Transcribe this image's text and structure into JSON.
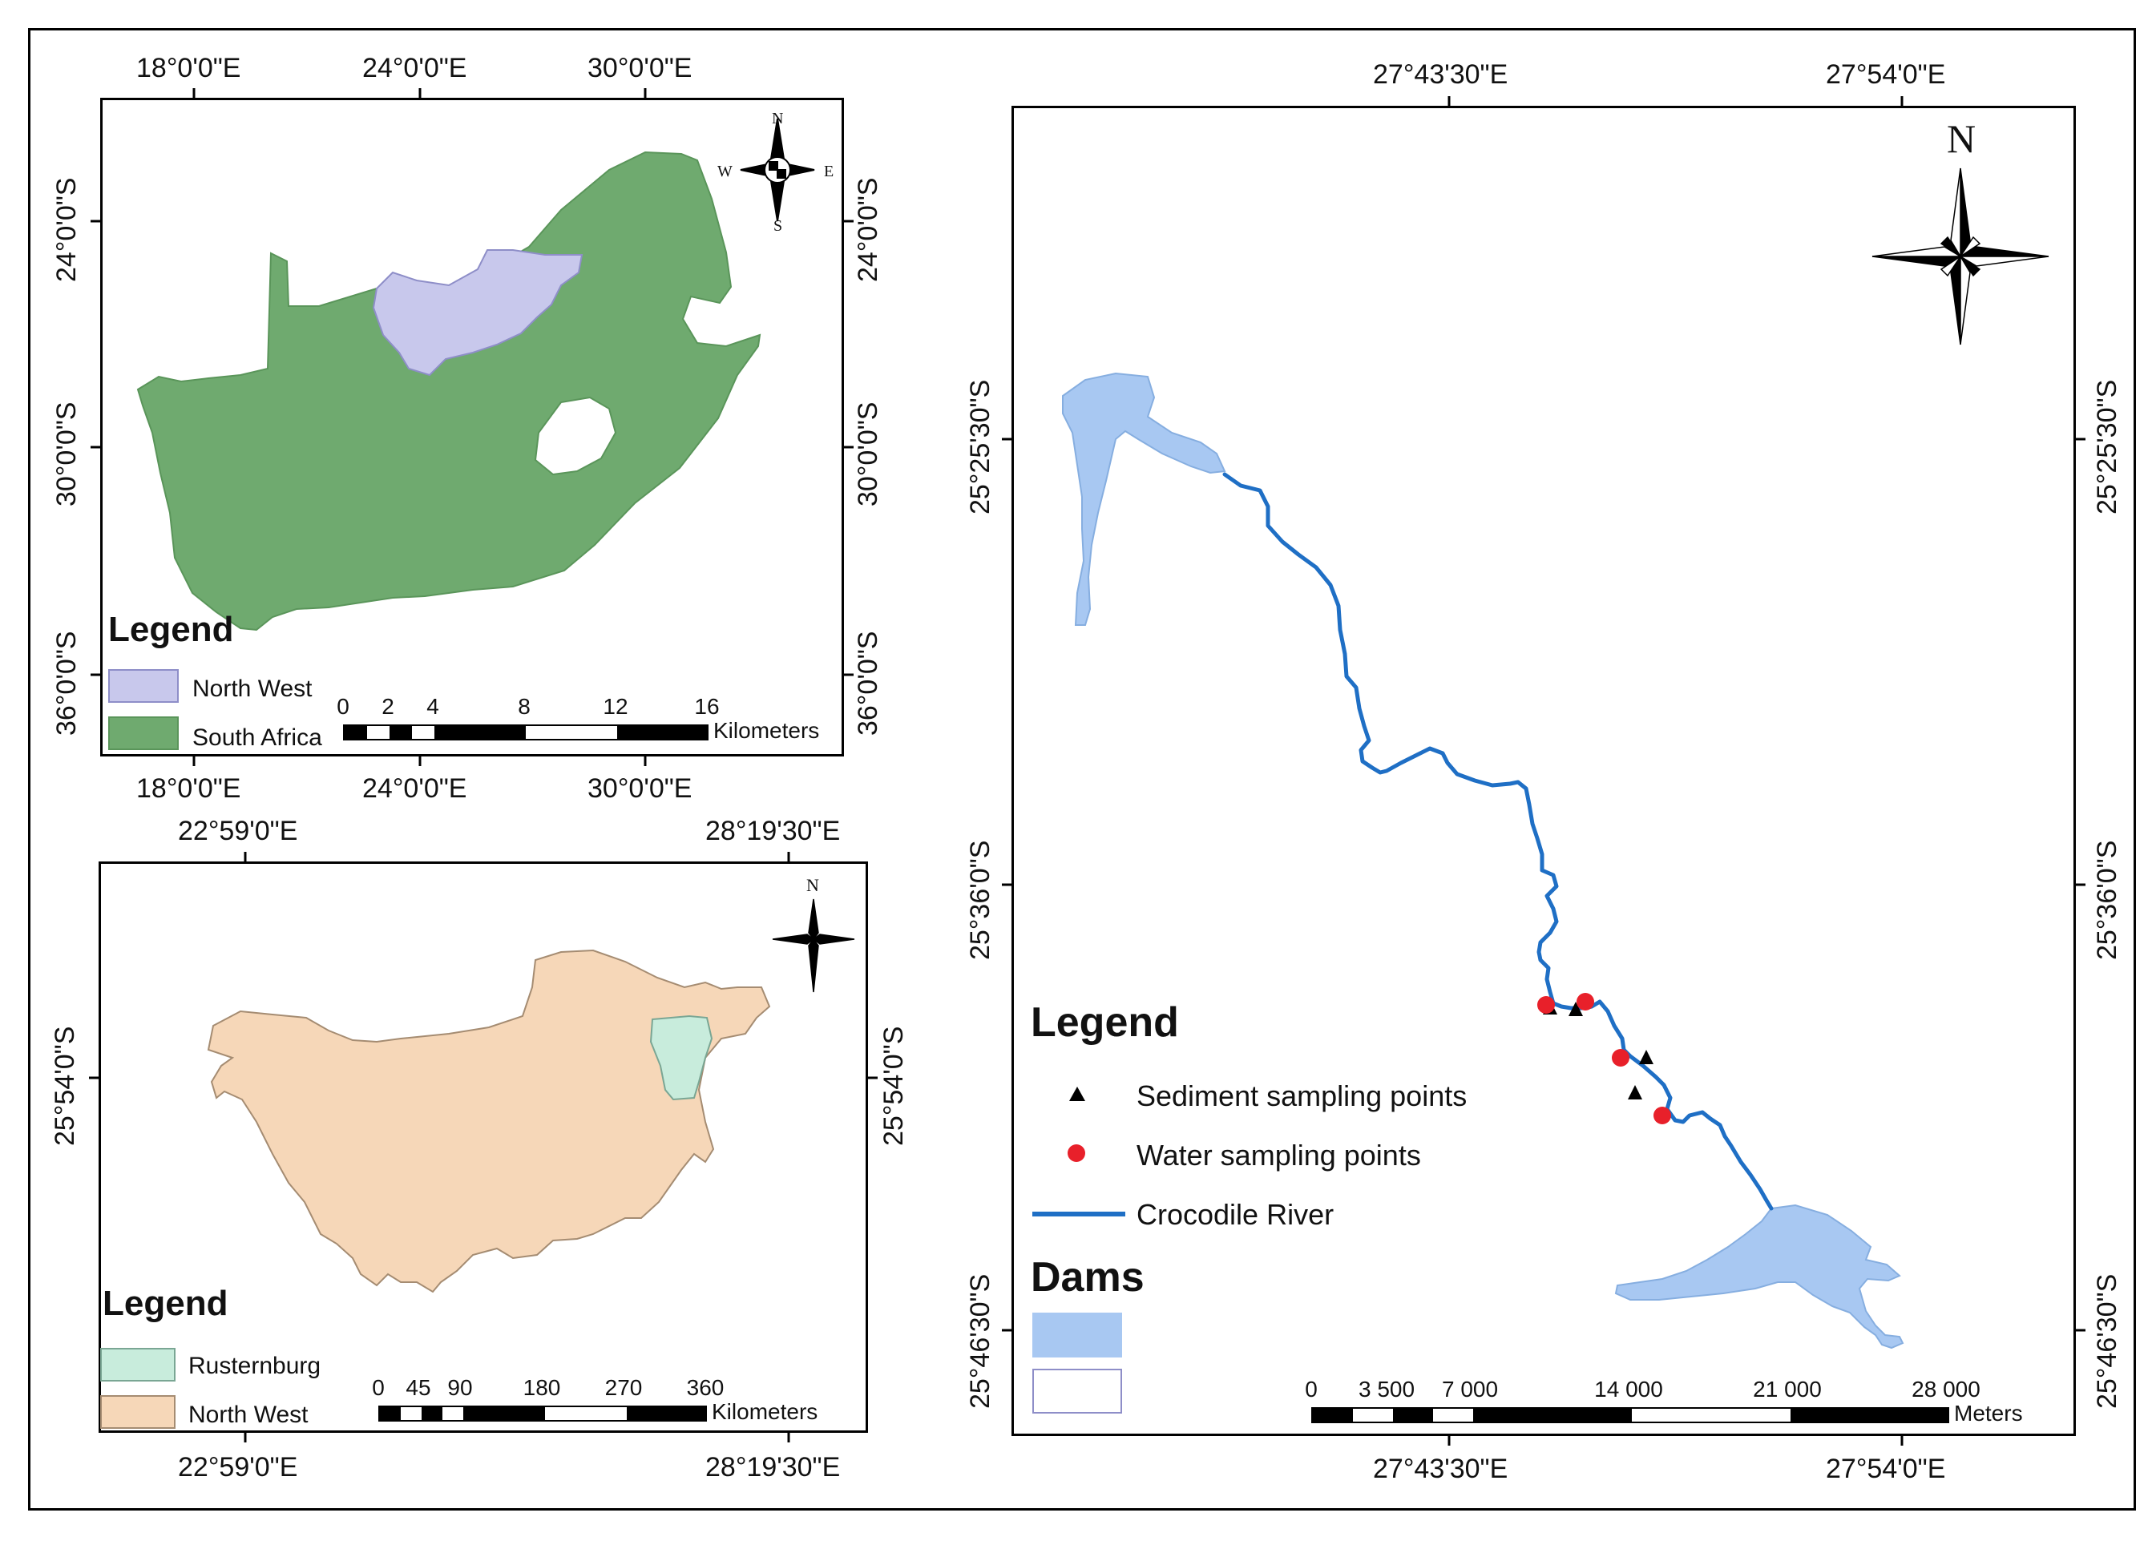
{
  "colors": {
    "south_africa": "#6faa6f",
    "north_west": "#c8c8ec",
    "nw_province": "#f6d7b8",
    "rustenburg": "#c8ecdc",
    "river": "#1f6fc5",
    "dam": "#a8c8f2",
    "water_point": "#e8202a",
    "sediment_point": "#000000"
  },
  "panel_sa": {
    "top_axis": [
      "18°0'0\"E",
      "24°0'0\"E",
      "30°0'0\"E"
    ],
    "bottom_axis": [
      "18°0'0\"E",
      "24°0'0\"E",
      "30°0'0\"E"
    ],
    "left_axis": [
      "24°0'0\"S",
      "30°0'0\"S",
      "36°0'0\"S"
    ],
    "right_axis": [
      "24°0'0\"S",
      "30°0'0\"S",
      "36°0'0\"S"
    ],
    "compass": {
      "n": "N",
      "s": "S",
      "e": "E",
      "w": "W"
    },
    "legend": {
      "title": "Legend",
      "items": [
        {
          "label": "North West",
          "color_key": "north_west"
        },
        {
          "label": "South Africa",
          "color_key": "south_africa"
        }
      ]
    },
    "scale": {
      "ticks": [
        "0",
        "2",
        "4",
        "8",
        "12",
        "16"
      ],
      "unit": "Kilometers"
    }
  },
  "panel_nw": {
    "top_axis": [
      "22°59'0\"E",
      "28°19'30\"E"
    ],
    "bottom_axis": [
      "22°59'0\"E",
      "28°19'30\"E"
    ],
    "left_axis": [
      "25°54'0\"S"
    ],
    "right_axis": [
      "25°54'0\"S"
    ],
    "compass": {
      "n": "N"
    },
    "legend": {
      "title": "Legend",
      "items": [
        {
          "label": "Rusternburg",
          "color_key": "rustenburg"
        },
        {
          "label": "North West",
          "color_key": "nw_province"
        }
      ]
    },
    "scale": {
      "ticks": [
        "0",
        "45",
        "90",
        "180",
        "270",
        "360"
      ],
      "unit": "Kilometers"
    }
  },
  "panel_river": {
    "top_axis": [
      "27°43'30\"E",
      "27°54'0\"E"
    ],
    "bottom_axis": [
      "27°43'30\"E",
      "27°54'0\"E"
    ],
    "left_axis": [
      "25°25'30\"S",
      "25°36'0\"S",
      "25°46'30\"S"
    ],
    "right_axis": [
      "25°25'30\"S",
      "25°36'0\"S",
      "25°46'30\"S"
    ],
    "compass": {
      "n": "N"
    },
    "legend": {
      "title": "Legend",
      "items": [
        {
          "label": "Sediment sampling points",
          "symbol": "triangle"
        },
        {
          "label": "Water sampling points",
          "symbol": "circle"
        },
        {
          "label": "Crocodile River",
          "symbol": "line"
        }
      ],
      "dams_title": "Dams"
    },
    "scale": {
      "ticks": [
        "0",
        "3 500",
        "7 000",
        "14 000",
        "21 000",
        "28 000"
      ],
      "unit": "Meters"
    },
    "sediment_points": 4,
    "water_points": 4
  }
}
